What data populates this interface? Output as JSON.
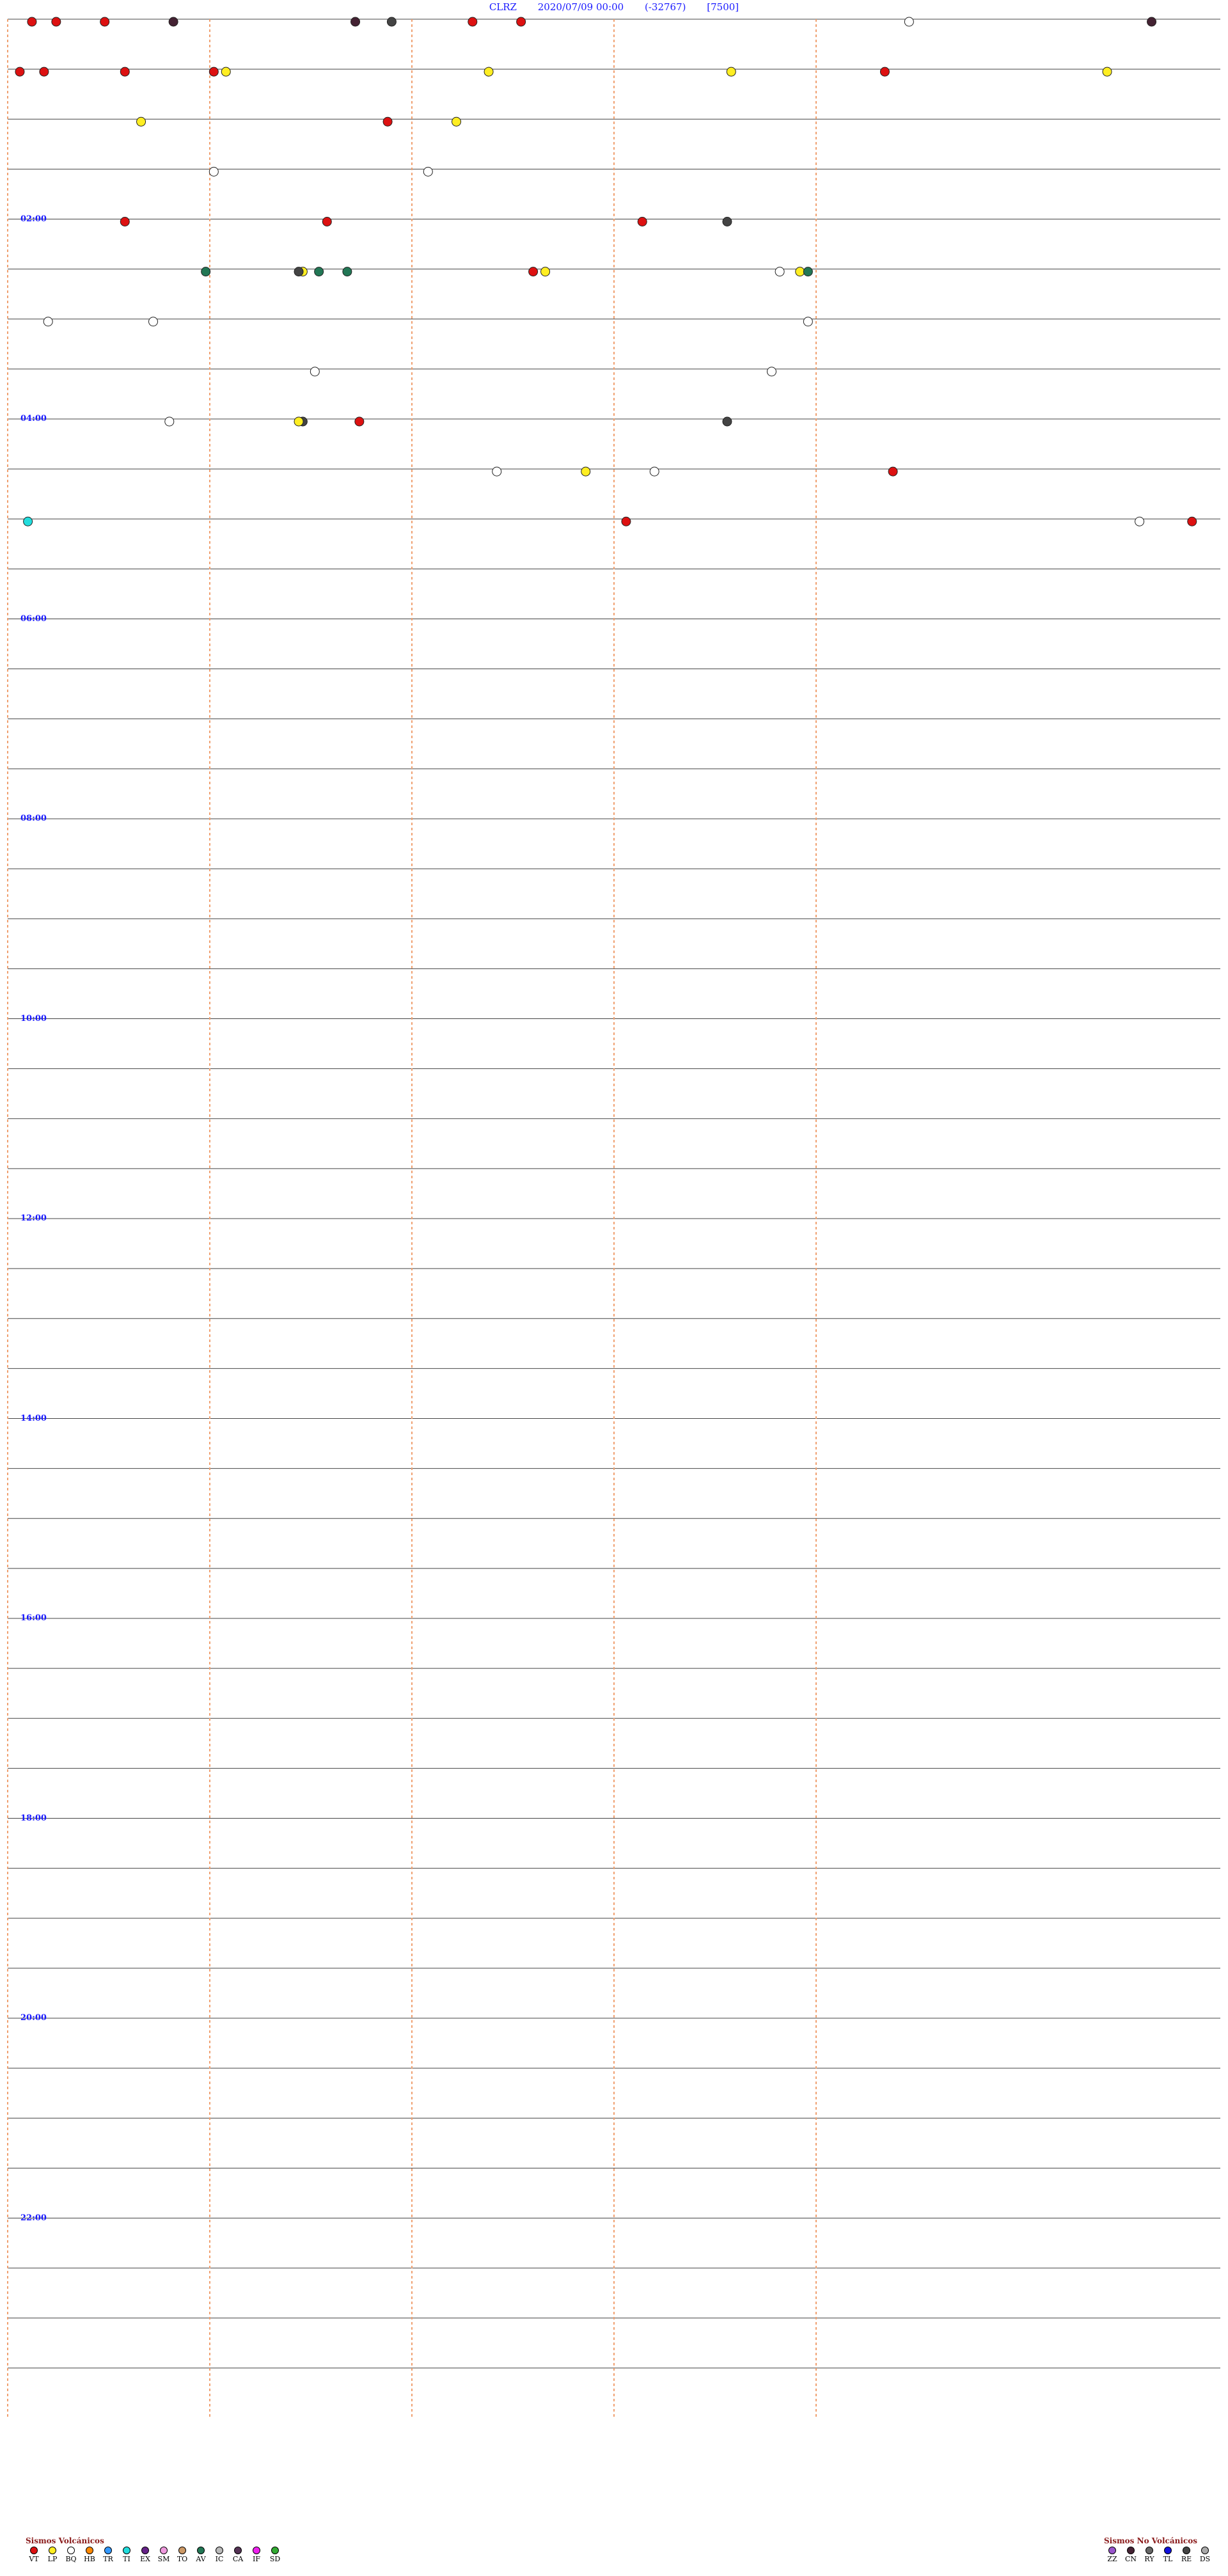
{
  "header": {
    "station": "CLRZ",
    "datetime": "2020/07/09 00:00",
    "count": "(-32767)",
    "scale": "[7500]"
  },
  "hour_labels": [
    "02:00",
    "04:00",
    "06:00",
    "08:00",
    "10:00",
    "12:00",
    "14:00",
    "16:00",
    "18:00",
    "20:00",
    "22:00"
  ],
  "legend_volcanic": {
    "title": "Sismos Volcánicos",
    "items": [
      {
        "code": "VT",
        "color": "#dd1111"
      },
      {
        "code": "LP",
        "color": "#ffee22"
      },
      {
        "code": "BQ",
        "color": "#ffffff"
      },
      {
        "code": "HB",
        "color": "#ff8800"
      },
      {
        "code": "TR",
        "color": "#3399ff"
      },
      {
        "code": "TI",
        "color": "#22dddd"
      },
      {
        "code": "EX",
        "color": "#662288"
      },
      {
        "code": "SM",
        "color": "#ee99dd"
      },
      {
        "code": "TO",
        "color": "#cc9966"
      },
      {
        "code": "AV",
        "color": "#227755"
      },
      {
        "code": "IC",
        "color": "#bbbbbb"
      },
      {
        "code": "CA",
        "color": "#553355"
      },
      {
        "code": "IF",
        "color": "#ee22ee"
      },
      {
        "code": "SD",
        "color": "#33aa33"
      }
    ]
  },
  "legend_nonvolcanic": {
    "title": "Sismos No Volcánicos",
    "items": [
      {
        "code": "ZZ",
        "color": "#9955cc"
      },
      {
        "code": "CN",
        "color": "#442233"
      },
      {
        "code": "RY",
        "color": "#666666"
      },
      {
        "code": "TL",
        "color": "#1111dd"
      },
      {
        "code": "RE",
        "color": "#444444"
      },
      {
        "code": "DS",
        "color": "#aaaaaa"
      }
    ]
  },
  "chart_data": {
    "type": "scatter",
    "x_unit": "minutes past the hour",
    "y_unit": "line index",
    "xlim": [
      0,
      30
    ],
    "line_count": 48,
    "dashed_markers_minutes": [
      5,
      10,
      15,
      20
    ],
    "events": [
      {
        "type": "VT",
        "line": 0,
        "minute": 0.6
      },
      {
        "type": "VT",
        "line": 0,
        "minute": 1.2
      },
      {
        "type": "VT",
        "line": 0,
        "minute": 2.4
      },
      {
        "type": "VT",
        "line": 0,
        "minute": 11.5
      },
      {
        "type": "VT",
        "line": 0,
        "minute": 12.7
      },
      {
        "type": "CN",
        "line": 0,
        "minute": 4.1
      },
      {
        "type": "CN",
        "line": 0,
        "minute": 8.6
      },
      {
        "type": "RE",
        "line": 0,
        "minute": 9.5
      },
      {
        "type": "BQ",
        "line": 0,
        "minute": 22.3
      },
      {
        "type": "CN",
        "line": 0,
        "minute": 28.3
      },
      {
        "type": "VT",
        "line": 1,
        "minute": 0.3
      },
      {
        "type": "VT",
        "line": 1,
        "minute": 2.9
      },
      {
        "type": "VT",
        "line": 1,
        "minute": 5.1
      },
      {
        "type": "LP",
        "line": 1,
        "minute": 5.4
      },
      {
        "type": "LP",
        "line": 1,
        "minute": 11.9
      },
      {
        "type": "LP",
        "line": 1,
        "minute": 17.9
      },
      {
        "type": "VT",
        "line": 1,
        "minute": 21.7
      },
      {
        "type": "LP",
        "line": 1,
        "minute": 27.2
      },
      {
        "type": "VT",
        "line": 1,
        "minute": 0.9
      },
      {
        "type": "LP",
        "line": 2,
        "minute": 3.3
      },
      {
        "type": "LP",
        "line": 2,
        "minute": 11.1
      },
      {
        "type": "VT",
        "line": 2,
        "minute": 9.4
      },
      {
        "type": "BQ",
        "line": 3,
        "minute": 5.1
      },
      {
        "type": "BQ",
        "line": 3,
        "minute": 10.4
      },
      {
        "type": "VT",
        "line": 4,
        "minute": 2.9
      },
      {
        "type": "VT",
        "line": 4,
        "minute": 7.9
      },
      {
        "type": "VT",
        "line": 4,
        "minute": 15.7
      },
      {
        "type": "RE",
        "line": 4,
        "minute": 17.8
      },
      {
        "type": "LP",
        "line": 5,
        "minute": 7.3
      },
      {
        "type": "RE",
        "line": 5,
        "minute": 7.2
      },
      {
        "type": "AV",
        "line": 5,
        "minute": 4.9
      },
      {
        "type": "AV",
        "line": 5,
        "minute": 7.7
      },
      {
        "type": "AV",
        "line": 5,
        "minute": 8.4
      },
      {
        "type": "VT",
        "line": 5,
        "minute": 13.0
      },
      {
        "type": "LP",
        "line": 5,
        "minute": 13.3
      },
      {
        "type": "BQ",
        "line": 5,
        "minute": 19.1
      },
      {
        "type": "LP",
        "line": 5,
        "minute": 19.6
      },
      {
        "type": "AV",
        "line": 5,
        "minute": 19.8
      },
      {
        "type": "BQ",
        "line": 6,
        "minute": 1.0
      },
      {
        "type": "BQ",
        "line": 6,
        "minute": 3.6
      },
      {
        "type": "BQ",
        "line": 6,
        "minute": 19.8
      },
      {
        "type": "BQ",
        "line": 7,
        "minute": 7.6
      },
      {
        "type": "BQ",
        "line": 7,
        "minute": 18.9
      },
      {
        "type": "BQ",
        "line": 8,
        "minute": 4.0
      },
      {
        "type": "RE",
        "line": 8,
        "minute": 7.3
      },
      {
        "type": "LP",
        "line": 8,
        "minute": 7.2
      },
      {
        "type": "VT",
        "line": 8,
        "minute": 8.7
      },
      {
        "type": "RE",
        "line": 8,
        "minute": 17.8
      },
      {
        "type": "BQ",
        "line": 9,
        "minute": 12.1
      },
      {
        "type": "BQ",
        "line": 9,
        "minute": 16.0
      },
      {
        "type": "LP",
        "line": 9,
        "minute": 14.3
      },
      {
        "type": "VT",
        "line": 9,
        "minute": 21.9
      },
      {
        "type": "VT",
        "line": 10,
        "minute": 15.3
      },
      {
        "type": "VT",
        "line": 10,
        "minute": 29.3
      },
      {
        "type": "BQ",
        "line": 10,
        "minute": 28.0
      },
      {
        "type": "TI",
        "line": 10,
        "minute": 0.5
      }
    ]
  }
}
